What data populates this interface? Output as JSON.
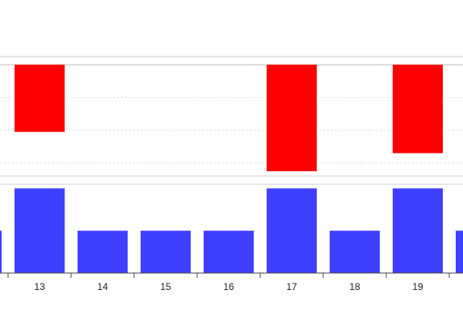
{
  "chart_data": {
    "type": "bar",
    "categories": [
      null,
      "13",
      "14",
      "15",
      "16",
      "17",
      "18",
      "19",
      null
    ],
    "series": [
      {
        "color": "#ff0000",
        "values": [
          null,
          -2.05,
          0,
          0,
          0,
          -3.25,
          0,
          -2.7,
          null
        ],
        "ylim": [
          -3.4,
          0.25
        ],
        "yticks": [
          -3,
          -2,
          -1,
          0
        ],
        "grid": true
      },
      {
        "color": "#3f3fff",
        "values": [
          1,
          2,
          1,
          1,
          1,
          2,
          1,
          2,
          1
        ],
        "ylim": [
          0,
          2.1
        ]
      }
    ]
  }
}
